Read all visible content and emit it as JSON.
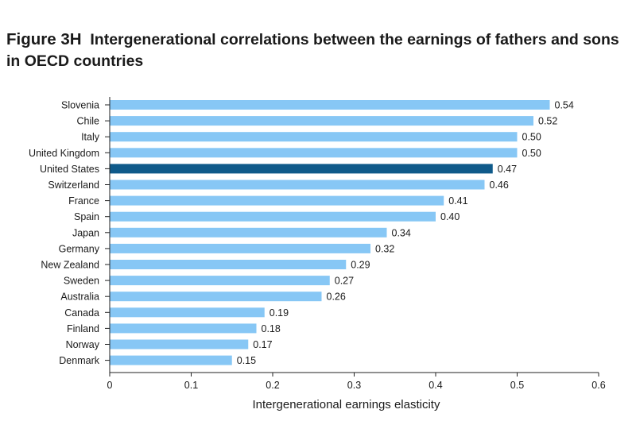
{
  "title": {
    "figure_label": "Figure 3H",
    "text": "Intergenerational correlations between the earnings of fathers and sons in OECD countries"
  },
  "colors": {
    "bar": "#87c7f5",
    "highlight": "#0f5a8a",
    "axis": "#222222"
  },
  "chart_data": {
    "type": "bar",
    "orientation": "horizontal",
    "categories": [
      "Slovenia",
      "Chile",
      "Italy",
      "United Kingdom",
      "United States",
      "Switzerland",
      "France",
      "Spain",
      "Japan",
      "Germany",
      "New Zealand",
      "Sweden",
      "Australia",
      "Canada",
      "Finland",
      "Norway",
      "Denmark"
    ],
    "values": [
      0.54,
      0.52,
      0.5,
      0.5,
      0.47,
      0.46,
      0.41,
      0.4,
      0.34,
      0.32,
      0.29,
      0.27,
      0.26,
      0.19,
      0.18,
      0.17,
      0.15
    ],
    "value_labels": [
      "0.54",
      "0.52",
      "0.50",
      "0.50",
      "0.47",
      "0.46",
      "0.41",
      "0.40",
      "0.34",
      "0.32",
      "0.29",
      "0.27",
      "0.26",
      "0.19",
      "0.18",
      "0.17",
      "0.15"
    ],
    "highlight": "United States",
    "xlabel": "Intergenerational earnings elasticity",
    "xlim": [
      0,
      0.6
    ],
    "xticks": [
      0,
      0.1,
      0.2,
      0.3,
      0.4,
      0.5,
      0.6
    ],
    "xtick_labels": [
      "0",
      "0.1",
      "0.2",
      "0.3",
      "0.4",
      "0.5",
      "0.6"
    ],
    "grid": false,
    "legend": "none"
  }
}
